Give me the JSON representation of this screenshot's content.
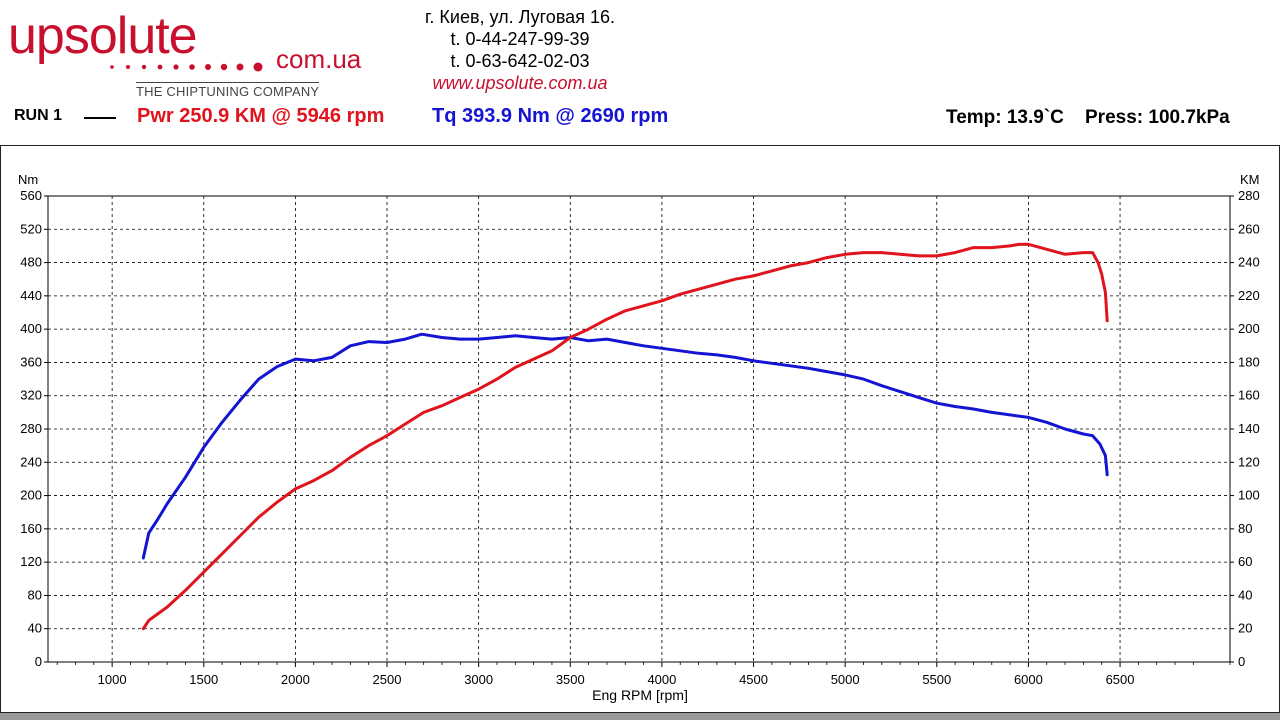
{
  "header": {
    "logo_text": "upsolute",
    "logo_domain": "com.ua",
    "logo_tagline": "THE CHIPTUNING COMPANY",
    "address": "г. Киев, ул. Луговая 16.",
    "phone1": "t. 0-44-247-99-39",
    "phone2": "t. 0-63-642-02-03",
    "website": "www.upsolute.com.ua"
  },
  "run": {
    "label": "RUN 1",
    "pwr_text": "Pwr  250.9 KM @ 5946 rpm",
    "tq_text": "Tq 393.9 Nm @ 2690 rpm",
    "env_text": "Temp: 13.9`C    Press: 100.7kPa"
  },
  "colors": {
    "power": "#e0141c",
    "torque": "#1414d2",
    "brand": "#c8102e"
  },
  "chart_data": {
    "type": "line",
    "xlabel": "Eng RPM [rpm]",
    "ylabel_left": "Nm",
    "ylabel_right": "KM",
    "xlim": [
      650,
      7100
    ],
    "ylim_left": [
      0,
      560
    ],
    "ylim_right": [
      0,
      280
    ],
    "grid": true,
    "x_ticks": [
      1000,
      1500,
      2000,
      2500,
      3000,
      3500,
      4000,
      4500,
      5000,
      5500,
      6000,
      6500
    ],
    "y_ticks_left": [
      0,
      40,
      80,
      120,
      160,
      200,
      240,
      280,
      320,
      360,
      400,
      440,
      480,
      520,
      560
    ],
    "y_ticks_right": [
      0,
      20,
      40,
      60,
      80,
      100,
      120,
      140,
      160,
      180,
      200,
      220,
      240,
      260,
      280
    ],
    "series": [
      {
        "axis": "left",
        "color": "#1414d2",
        "x": [
          1170,
          1200,
          1250,
          1300,
          1400,
          1500,
          1600,
          1700,
          1800,
          1900,
          2000,
          2100,
          2200,
          2300,
          2400,
          2500,
          2600,
          2690,
          2800,
          2900,
          3000,
          3100,
          3200,
          3300,
          3400,
          3500,
          3600,
          3700,
          3800,
          3900,
          4000,
          4100,
          4200,
          4300,
          4400,
          4500,
          4600,
          4700,
          4800,
          4900,
          5000,
          5100,
          5200,
          5300,
          5400,
          5500,
          5600,
          5700,
          5800,
          5900,
          6000,
          6100,
          6200,
          6300,
          6350,
          6390,
          6420,
          6430
        ],
        "y": [
          125,
          155,
          172,
          190,
          222,
          258,
          288,
          315,
          340,
          355,
          364,
          362,
          366,
          380,
          385,
          384,
          388,
          393.9,
          390,
          388,
          388,
          390,
          392,
          390,
          388,
          390,
          386,
          388,
          384,
          380,
          377,
          374,
          371,
          369,
          366,
          362,
          359,
          356,
          353,
          349,
          345,
          340,
          332,
          325,
          318,
          311,
          307,
          304,
          300,
          297,
          294,
          288,
          280,
          274,
          272,
          262,
          248,
          225
        ]
      },
      {
        "axis": "right",
        "color": "#e0141c",
        "x": [
          1170,
          1200,
          1300,
          1400,
          1500,
          1600,
          1700,
          1800,
          1900,
          2000,
          2100,
          2200,
          2300,
          2400,
          2500,
          2600,
          2700,
          2800,
          2900,
          3000,
          3100,
          3200,
          3300,
          3400,
          3500,
          3600,
          3700,
          3800,
          3900,
          4000,
          4100,
          4200,
          4300,
          4400,
          4500,
          4600,
          4700,
          4800,
          4900,
          5000,
          5100,
          5200,
          5300,
          5400,
          5500,
          5600,
          5700,
          5800,
          5900,
          5946,
          6000,
          6100,
          6200,
          6300,
          6350,
          6380,
          6400,
          6420,
          6430
        ],
        "y": [
          20,
          25,
          33,
          43,
          54,
          65,
          76,
          87,
          96,
          104,
          109,
          115,
          123,
          130,
          136,
          143,
          150,
          154,
          159,
          164,
          170,
          177,
          182,
          187,
          195,
          200,
          206,
          211,
          214,
          217,
          221,
          224,
          227,
          230,
          232,
          235,
          238,
          240,
          243,
          245,
          246,
          246,
          245,
          244,
          244,
          246,
          249,
          249,
          250,
          250.9,
          251,
          248,
          245,
          246,
          246,
          240,
          233,
          222,
          205
        ]
      }
    ]
  }
}
